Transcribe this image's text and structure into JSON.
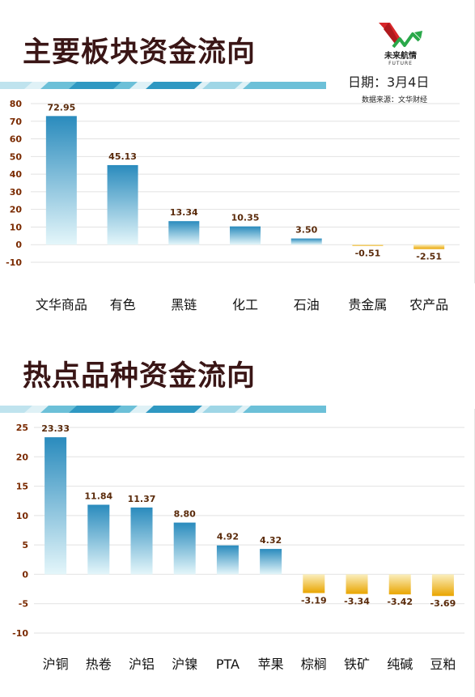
{
  "header": {
    "logo_text": "未来航情",
    "logo_sub": "FUTURE",
    "date": "日期：3月4日",
    "source": "数据来源：文华财经"
  },
  "colors": {
    "title": "#3a1616",
    "positive_bar_top": "#2a8bbd",
    "positive_bar_bottom": "#e4f6fa",
    "negative_bar_top": "#fbefbf",
    "negative_bar_bottom": "#e9a500",
    "value_label": "#5a2a0a",
    "axis_label": "#7a2a00"
  },
  "sections": [
    {
      "title": "主要板块资金流向"
    },
    {
      "title": "热点品种资金流向"
    }
  ],
  "chart_data": [
    {
      "type": "bar",
      "title": "主要板块资金流向",
      "categories": [
        "文华商品",
        "有色",
        "黑链",
        "化工",
        "石油",
        "贵金属",
        "农产品"
      ],
      "values": [
        72.95,
        45.13,
        13.34,
        10.35,
        3.5,
        -0.51,
        -2.51
      ],
      "value_labels": [
        "72.95",
        "45.13",
        "13.34",
        "10.35",
        "3.50",
        "-0.51",
        "-2.51"
      ],
      "ylim": [
        -10,
        80
      ],
      "yticks": [
        -10,
        0,
        10,
        20,
        30,
        40,
        50,
        60,
        70,
        80
      ],
      "grid": true
    },
    {
      "type": "bar",
      "title": "热点品种资金流向",
      "categories": [
        "沪铜",
        "热卷",
        "沪铝",
        "沪镍",
        "PTA",
        "苹果",
        "棕榈",
        "铁矿",
        "纯碱",
        "豆粕"
      ],
      "values": [
        23.33,
        11.84,
        11.37,
        8.8,
        4.92,
        4.32,
        -3.19,
        -3.34,
        -3.42,
        -3.69
      ],
      "value_labels": [
        "23.33",
        "11.84",
        "11.37",
        "8.80",
        "4.92",
        "4.32",
        "-3.19",
        "-3.34",
        "-3.42",
        "-3.69"
      ],
      "ylim": [
        -10,
        25
      ],
      "yticks": [
        -10,
        -5,
        0,
        5,
        10,
        15,
        20,
        25
      ],
      "grid": true
    }
  ]
}
